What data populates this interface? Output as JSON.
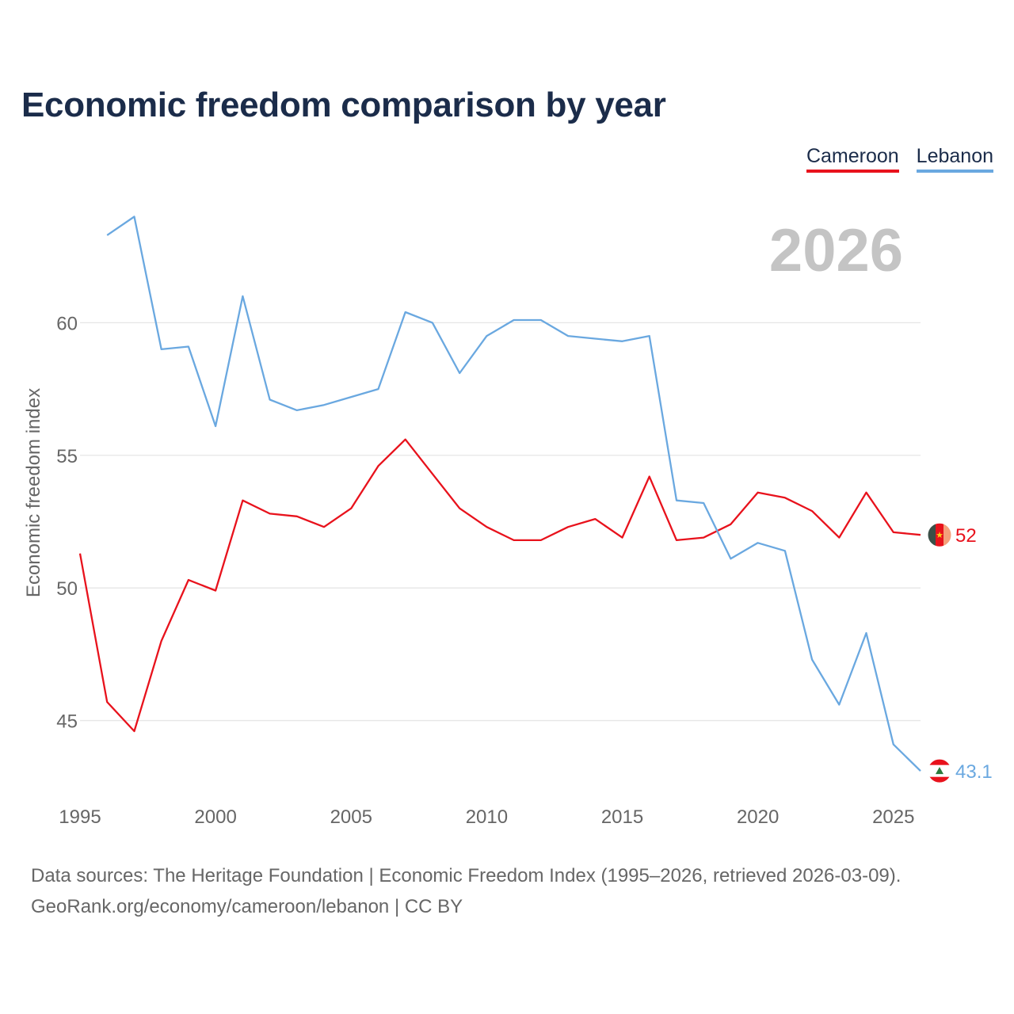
{
  "title": "Economic freedom comparison by year",
  "year_label": "2026",
  "legend": [
    {
      "name": "Cameroon",
      "color": "#e8121c"
    },
    {
      "name": "Lebanon",
      "color": "#6aa8e0"
    }
  ],
  "sources": {
    "line1": "Data sources: The Heritage Foundation | Economic Freedom Index (1995–2026, retrieved 2026-03-09).",
    "line2": "GeoRank.org/economy/cameroon/lebanon | CC BY"
  },
  "chart_data": {
    "type": "line",
    "title": "Economic freedom comparison by year",
    "xlabel": "",
    "ylabel": "Economic freedom index",
    "xlim": [
      1995,
      2026
    ],
    "ylim": [
      42,
      65
    ],
    "x_ticks": [
      1995,
      2000,
      2005,
      2010,
      2015,
      2020,
      2025
    ],
    "y_ticks": [
      45,
      50,
      55,
      60
    ],
    "grid": true,
    "legend_position": "top-right",
    "series": [
      {
        "name": "Cameroon",
        "color": "#e8121c",
        "end_label": "52",
        "flag": "cameroon",
        "x": [
          1995,
          1996,
          1997,
          1998,
          1999,
          2000,
          2001,
          2002,
          2003,
          2004,
          2005,
          2006,
          2007,
          2008,
          2009,
          2010,
          2011,
          2012,
          2013,
          2014,
          2015,
          2016,
          2017,
          2018,
          2019,
          2020,
          2021,
          2022,
          2023,
          2024,
          2025,
          2026
        ],
        "y": [
          51.3,
          45.7,
          44.6,
          48.0,
          50.3,
          49.9,
          53.3,
          52.8,
          52.7,
          52.3,
          53.0,
          54.6,
          55.6,
          54.3,
          53.0,
          52.3,
          51.8,
          51.8,
          52.3,
          52.6,
          51.9,
          54.2,
          51.8,
          51.9,
          52.4,
          53.6,
          53.4,
          52.9,
          51.9,
          53.6,
          52.1,
          52.0
        ]
      },
      {
        "name": "Lebanon",
        "color": "#6aa8e0",
        "end_label": "43.1",
        "flag": "lebanon",
        "x": [
          1996,
          1997,
          1998,
          1999,
          2000,
          2001,
          2002,
          2003,
          2004,
          2005,
          2006,
          2007,
          2008,
          2009,
          2010,
          2011,
          2012,
          2013,
          2014,
          2015,
          2016,
          2017,
          2018,
          2019,
          2020,
          2021,
          2022,
          2023,
          2024,
          2025,
          2026
        ],
        "y": [
          63.3,
          64.0,
          59.0,
          59.1,
          56.1,
          61.0,
          57.1,
          56.7,
          56.9,
          57.2,
          57.5,
          60.4,
          60.0,
          58.1,
          59.5,
          60.1,
          60.1,
          59.5,
          59.4,
          59.3,
          59.5,
          53.3,
          53.2,
          51.1,
          51.7,
          51.4,
          47.3,
          45.6,
          48.3,
          44.1,
          43.1
        ]
      }
    ]
  }
}
